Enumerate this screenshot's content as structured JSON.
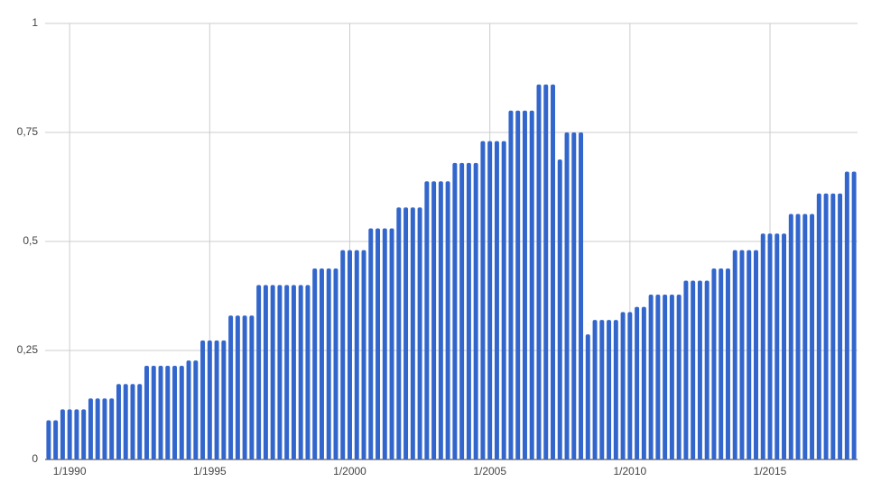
{
  "chart_data": {
    "type": "bar",
    "categories": [
      null,
      null,
      null,
      "1/1990",
      null,
      null,
      null,
      null,
      null,
      null,
      null,
      null,
      null,
      null,
      null,
      null,
      null,
      null,
      null,
      null,
      null,
      null,
      null,
      "1/1995",
      null,
      null,
      null,
      null,
      null,
      null,
      null,
      null,
      null,
      null,
      null,
      null,
      null,
      null,
      null,
      null,
      null,
      null,
      null,
      "1/2000",
      null,
      null,
      null,
      null,
      null,
      null,
      null,
      null,
      null,
      null,
      null,
      null,
      null,
      null,
      null,
      null,
      null,
      null,
      null,
      "1/2005",
      null,
      null,
      null,
      null,
      null,
      null,
      null,
      null,
      null,
      null,
      null,
      null,
      null,
      null,
      null,
      null,
      null,
      null,
      null,
      "1/2010",
      null,
      null,
      null,
      null,
      null,
      null,
      null,
      null,
      null,
      null,
      null,
      null,
      null,
      null,
      null,
      null,
      null,
      null,
      null,
      "1/2015",
      null,
      null,
      null,
      null,
      null,
      null,
      null,
      null,
      null,
      null,
      null,
      null
    ],
    "values": [
      0.09,
      0.09,
      0.115,
      0.115,
      0.115,
      0.115,
      0.14,
      0.14,
      0.14,
      0.14,
      0.173,
      0.173,
      0.173,
      0.173,
      0.215,
      0.215,
      0.215,
      0.215,
      0.215,
      0.215,
      0.227,
      0.227,
      0.273,
      0.273,
      0.273,
      0.273,
      0.33,
      0.33,
      0.33,
      0.33,
      0.4,
      0.4,
      0.4,
      0.4,
      0.4,
      0.4,
      0.4,
      0.4,
      0.438,
      0.438,
      0.438,
      0.438,
      0.48,
      0.48,
      0.48,
      0.48,
      0.53,
      0.53,
      0.53,
      0.53,
      0.578,
      0.578,
      0.578,
      0.578,
      0.638,
      0.638,
      0.638,
      0.638,
      0.68,
      0.68,
      0.68,
      0.68,
      0.73,
      0.73,
      0.73,
      0.73,
      0.8,
      0.8,
      0.8,
      0.8,
      0.86,
      0.86,
      0.86,
      0.688,
      0.75,
      0.75,
      0.75,
      0.287,
      0.32,
      0.32,
      0.32,
      0.32,
      0.338,
      0.338,
      0.35,
      0.35,
      0.378,
      0.378,
      0.378,
      0.378,
      0.378,
      0.41,
      0.41,
      0.41,
      0.41,
      0.438,
      0.438,
      0.438,
      0.48,
      0.48,
      0.48,
      0.48,
      0.518,
      0.518,
      0.518,
      0.518,
      0.563,
      0.563,
      0.563,
      0.563,
      0.61,
      0.61,
      0.61,
      0.61,
      0.66,
      0.66
    ],
    "color": "#3366cc",
    "ylim": [
      0,
      1
    ],
    "yticks": [
      0,
      {
        "value": 0.25,
        "label": "0,25"
      },
      {
        "value": 0.5,
        "label": "0,5"
      },
      {
        "value": 0.75,
        "label": "0,75"
      },
      1
    ],
    "grid": true
  }
}
